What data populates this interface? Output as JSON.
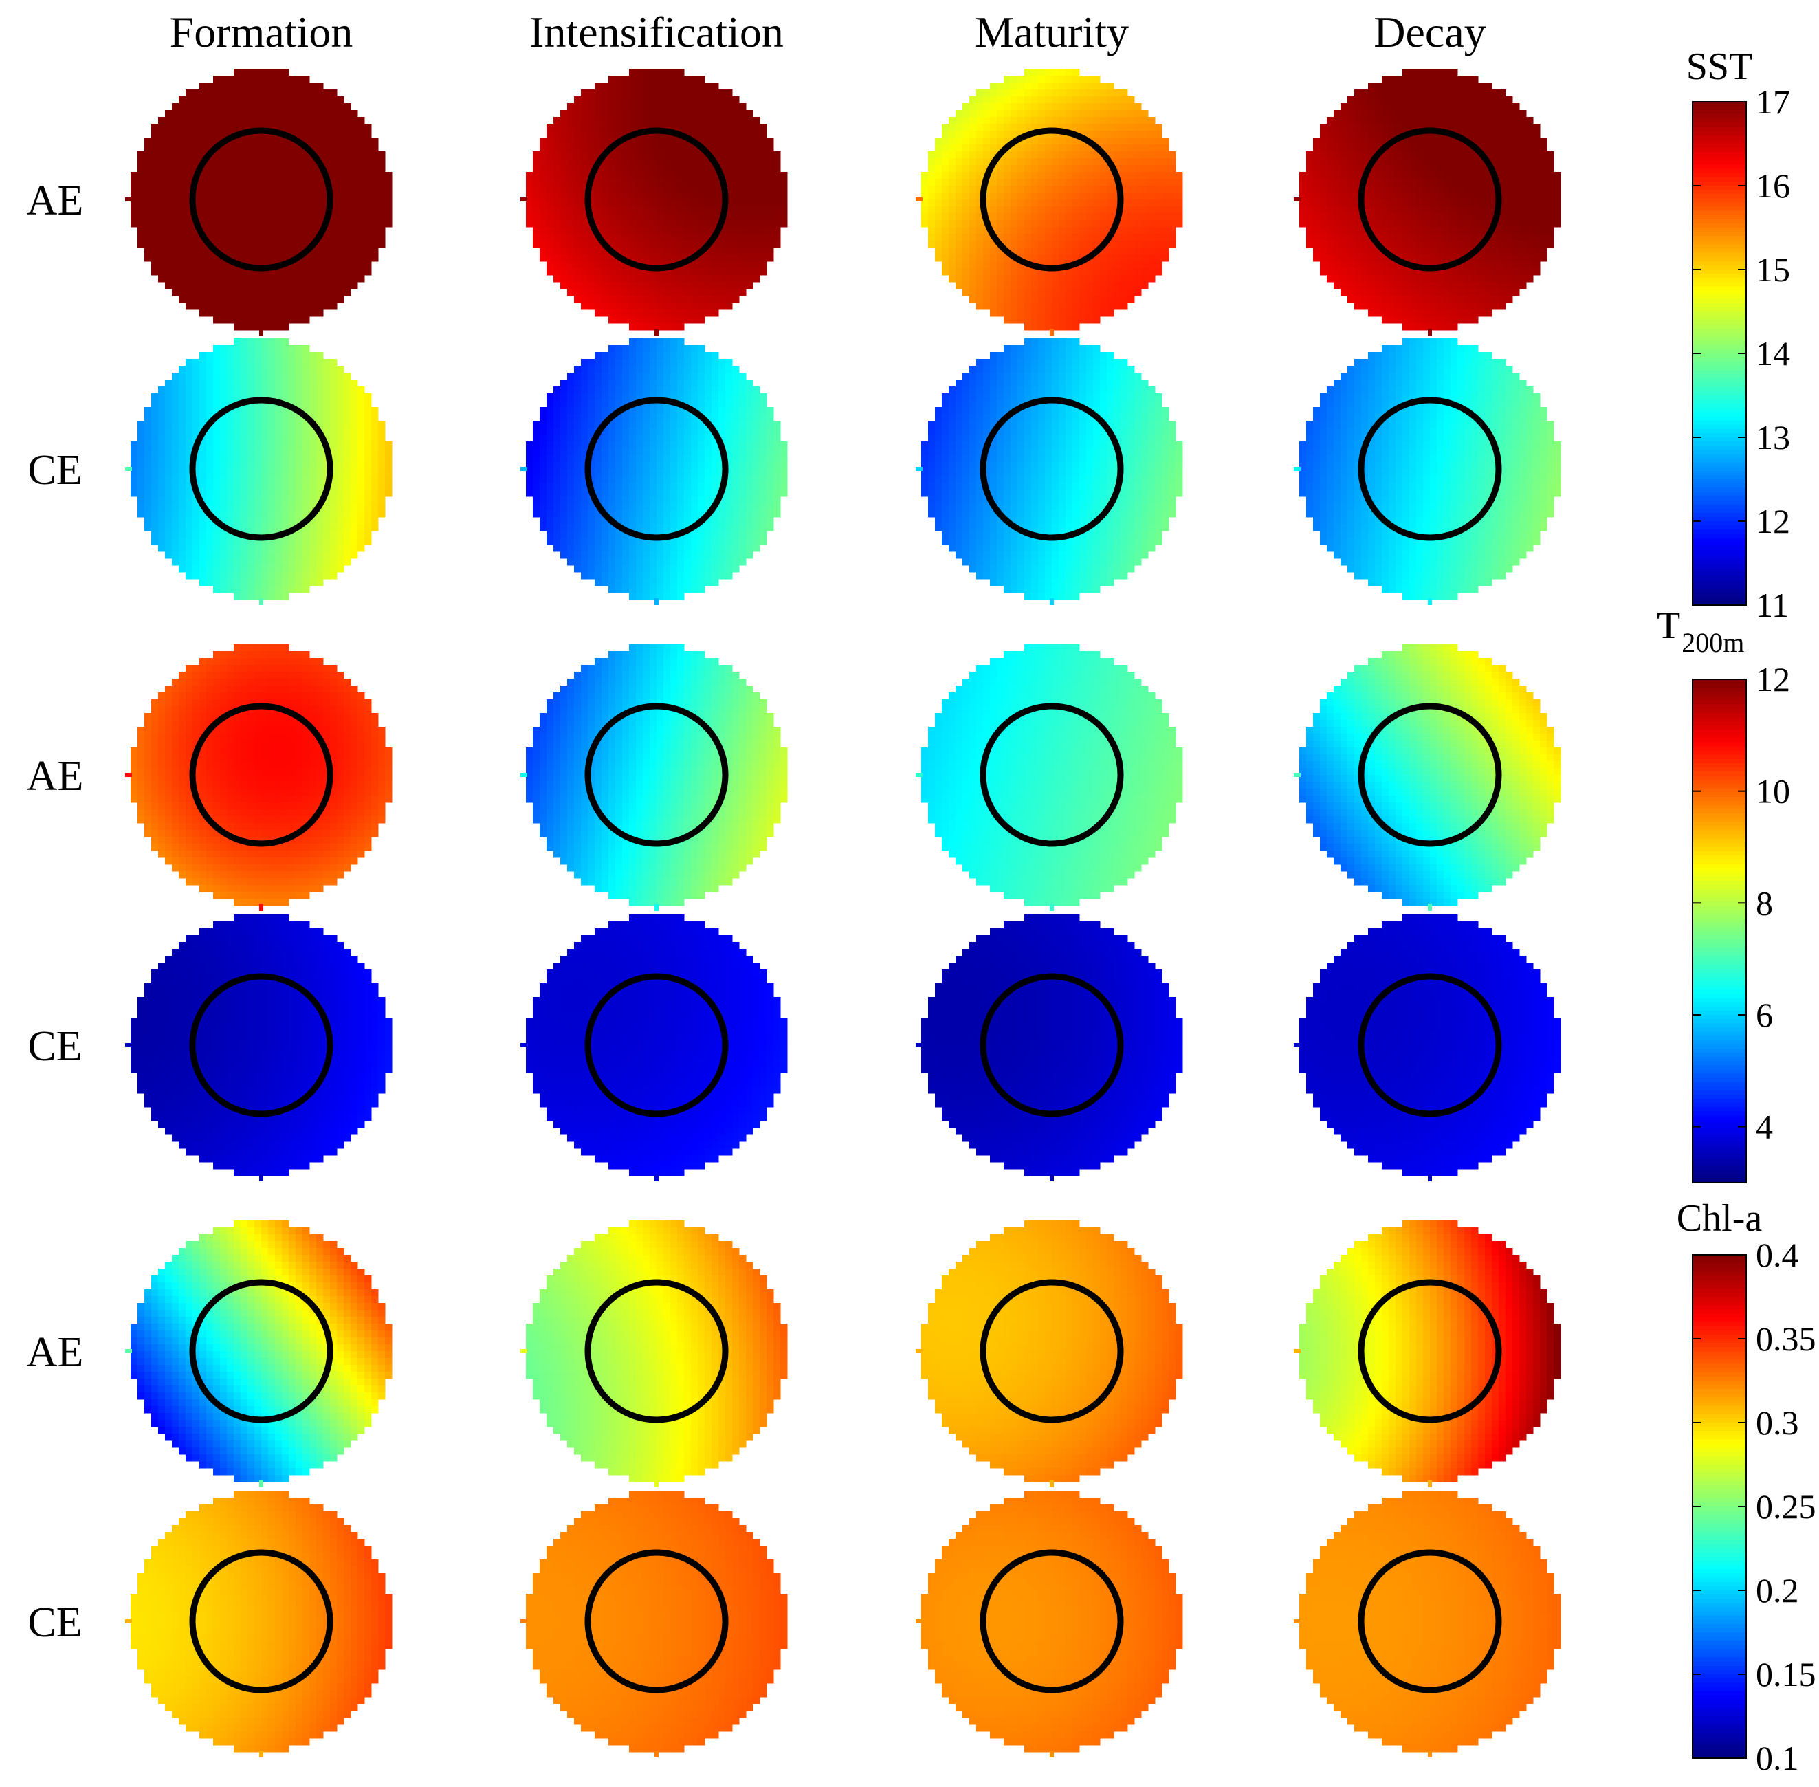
{
  "chart_data": {
    "type": "heatmap",
    "columns": [
      "Formation",
      "Intensification",
      "Maturity",
      "Decay"
    ],
    "row_labels": [
      "AE",
      "CE",
      "AE",
      "CE",
      "AE",
      "CE"
    ],
    "colormap": "jet",
    "groups": [
      {
        "variable": "SST",
        "colorbar_title": "SST",
        "colorbar_title_sub": "",
        "range": [
          11,
          17
        ],
        "ticks": [
          "11",
          "12",
          "13",
          "14",
          "15",
          "16",
          "17"
        ],
        "rows": [
          {
            "label": "AE",
            "panels": [
              {
                "stage": "Formation",
                "center": 17.0,
                "gx": 0.0,
                "gy": 0.0,
                "edge_delta": 0.0
              },
              {
                "stage": "Intensification",
                "center": 16.9,
                "gx": 0.6,
                "gy": 0.6,
                "edge_delta": -0.2
              },
              {
                "stage": "Maturity",
                "center": 15.6,
                "gx": 1.1,
                "gy": -1.2,
                "edge_delta": -0.3
              },
              {
                "stage": "Decay",
                "center": 16.9,
                "gx": 0.6,
                "gy": 0.7,
                "edge_delta": -0.1
              }
            ]
          },
          {
            "label": "CE",
            "panels": [
              {
                "stage": "Formation",
                "center": 13.7,
                "gx": 2.6,
                "gy": -0.2,
                "edge_delta": 0.1
              },
              {
                "stage": "Intensification",
                "center": 12.8,
                "gx": 2.2,
                "gy": -0.5,
                "edge_delta": 0.0
              },
              {
                "stage": "Maturity",
                "center": 13.0,
                "gx": 1.9,
                "gy": -0.5,
                "edge_delta": 0.0
              },
              {
                "stage": "Decay",
                "center": 13.2,
                "gx": 1.8,
                "gy": -0.4,
                "edge_delta": 0.0
              }
            ]
          }
        ]
      },
      {
        "variable": "T200m",
        "colorbar_title": "T",
        "colorbar_title_sub": "200m",
        "range": [
          3,
          12
        ],
        "ticks": [
          "4",
          "6",
          "8",
          "10",
          "12"
        ],
        "tick_values": [
          4,
          6,
          8,
          10,
          12
        ],
        "rows": [
          {
            "label": "AE",
            "panels": [
              {
                "stage": "Formation",
                "center": 10.8,
                "gx": 0.4,
                "gy": 0.6,
                "edge_delta": -0.8
              },
              {
                "stage": "Intensification",
                "center": 6.5,
                "gx": 3.5,
                "gy": -1.0,
                "edge_delta": 0.0
              },
              {
                "stage": "Maturity",
                "center": 6.8,
                "gx": 1.4,
                "gy": -0.4,
                "edge_delta": 0.0
              },
              {
                "stage": "Decay",
                "center": 7.0,
                "gx": 3.4,
                "gy": 2.3,
                "edge_delta": 0.0
              }
            ]
          },
          {
            "label": "CE",
            "panels": [
              {
                "stage": "Formation",
                "center": 3.6,
                "gx": 0.9,
                "gy": -0.2,
                "edge_delta": 0.2
              },
              {
                "stage": "Intensification",
                "center": 3.8,
                "gx": 0.5,
                "gy": -0.3,
                "edge_delta": 0.2
              },
              {
                "stage": "Maturity",
                "center": 3.5,
                "gx": 0.6,
                "gy": -0.2,
                "edge_delta": 0.2
              },
              {
                "stage": "Decay",
                "center": 3.7,
                "gx": 0.5,
                "gy": -0.2,
                "edge_delta": 0.2
              }
            ]
          }
        ]
      },
      {
        "variable": "Chl-a",
        "colorbar_title": "Chl-a",
        "colorbar_title_sub": "",
        "range": [
          0.1,
          0.4
        ],
        "ticks": [
          "0.1",
          "0.15",
          "0.2",
          "0.25",
          "0.3",
          "0.35",
          "0.4"
        ],
        "tick_values": [
          0.1,
          0.15,
          0.2,
          0.25,
          0.3,
          0.35,
          0.4
        ],
        "rows": [
          {
            "label": "AE",
            "panels": [
              {
                "stage": "Formation",
                "center": 0.24,
                "gx": 0.17,
                "gy": 0.12,
                "edge_delta": 0.0
              },
              {
                "stage": "Intensification",
                "center": 0.28,
                "gx": 0.09,
                "gy": 0.02,
                "edge_delta": 0.01
              },
              {
                "stage": "Maturity",
                "center": 0.31,
                "gx": 0.03,
                "gy": -0.01,
                "edge_delta": 0.01
              },
              {
                "stage": "Decay",
                "center": 0.31,
                "gx": 0.14,
                "gy": 0.0,
                "edge_delta": 0.02
              }
            ]
          },
          {
            "label": "CE",
            "panels": [
              {
                "stage": "Formation",
                "center": 0.31,
                "gx": 0.05,
                "gy": 0.0,
                "edge_delta": 0.01
              },
              {
                "stage": "Intensification",
                "center": 0.325,
                "gx": 0.02,
                "gy": 0.0,
                "edge_delta": 0.005
              },
              {
                "stage": "Maturity",
                "center": 0.32,
                "gx": 0.015,
                "gy": 0.0,
                "edge_delta": 0.008
              },
              {
                "stage": "Decay",
                "center": 0.32,
                "gx": 0.015,
                "gy": 0.0,
                "edge_delta": 0.005
              }
            ]
          }
        ]
      }
    ]
  }
}
